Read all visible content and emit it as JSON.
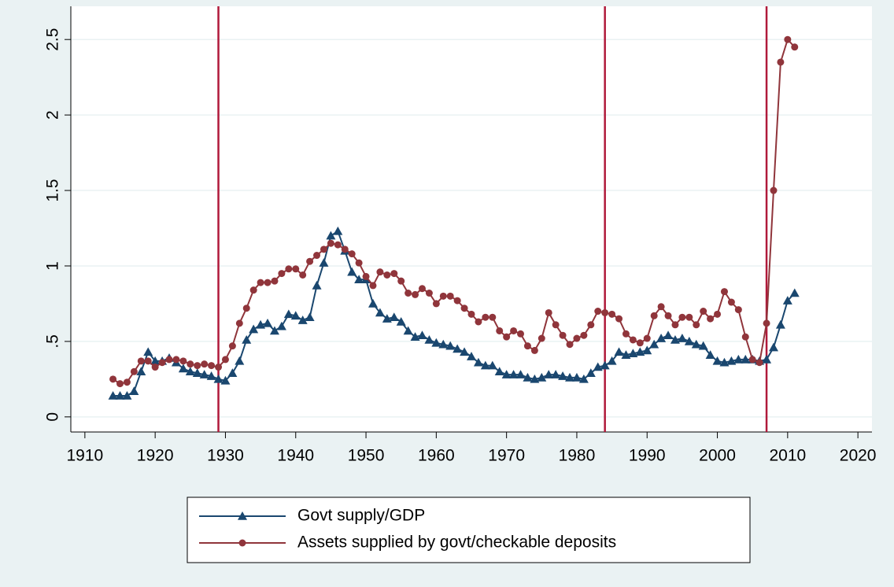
{
  "chart_data": {
    "type": "line",
    "x": [
      1914,
      1915,
      1916,
      1917,
      1918,
      1919,
      1920,
      1921,
      1922,
      1923,
      1924,
      1925,
      1926,
      1927,
      1928,
      1929,
      1930,
      1931,
      1932,
      1933,
      1934,
      1935,
      1936,
      1937,
      1938,
      1939,
      1940,
      1941,
      1942,
      1943,
      1944,
      1945,
      1946,
      1947,
      1948,
      1949,
      1950,
      1951,
      1952,
      1953,
      1954,
      1955,
      1956,
      1957,
      1958,
      1959,
      1960,
      1961,
      1962,
      1963,
      1964,
      1965,
      1966,
      1967,
      1968,
      1969,
      1970,
      1971,
      1972,
      1973,
      1974,
      1975,
      1976,
      1977,
      1978,
      1979,
      1980,
      1981,
      1982,
      1983,
      1984,
      1985,
      1986,
      1987,
      1988,
      1989,
      1990,
      1991,
      1992,
      1993,
      1994,
      1995,
      1996,
      1997,
      1998,
      1999,
      2000,
      2001,
      2002,
      2003,
      2004,
      2005,
      2006,
      2007,
      2008,
      2009,
      2010,
      2011
    ],
    "series": [
      {
        "name": "Govt supply/GDP",
        "color": "#1a476f",
        "marker": "triangle",
        "values": [
          0.14,
          0.14,
          0.14,
          0.17,
          0.3,
          0.43,
          0.37,
          0.37,
          0.39,
          0.36,
          0.32,
          0.3,
          0.29,
          0.28,
          0.27,
          0.25,
          0.24,
          0.29,
          0.37,
          0.51,
          0.58,
          0.61,
          0.62,
          0.57,
          0.6,
          0.68,
          0.67,
          0.64,
          0.66,
          0.87,
          1.02,
          1.2,
          1.23,
          1.1,
          0.96,
          0.91,
          0.91,
          0.75,
          0.69,
          0.65,
          0.66,
          0.63,
          0.57,
          0.53,
          0.54,
          0.51,
          0.49,
          0.48,
          0.47,
          0.45,
          0.43,
          0.4,
          0.36,
          0.34,
          0.34,
          0.3,
          0.28,
          0.28,
          0.28,
          0.26,
          0.25,
          0.26,
          0.28,
          0.28,
          0.27,
          0.26,
          0.26,
          0.25,
          0.29,
          0.33,
          0.34,
          0.37,
          0.43,
          0.41,
          0.42,
          0.43,
          0.44,
          0.48,
          0.52,
          0.54,
          0.51,
          0.52,
          0.5,
          0.48,
          0.47,
          0.41,
          0.37,
          0.36,
          0.37,
          0.38,
          0.38,
          0.38,
          0.37,
          0.38,
          0.46,
          0.61,
          0.77,
          0.82
        ]
      },
      {
        "name": "Assets supplied by govt/checkable deposits",
        "color": "#90353b",
        "marker": "circle",
        "values": [
          0.25,
          0.22,
          0.23,
          0.3,
          0.37,
          0.37,
          0.33,
          0.36,
          0.38,
          0.38,
          0.37,
          0.35,
          0.34,
          0.35,
          0.34,
          0.33,
          0.38,
          0.47,
          0.62,
          0.72,
          0.84,
          0.89,
          0.89,
          0.9,
          0.95,
          0.98,
          0.98,
          0.94,
          1.03,
          1.07,
          1.11,
          1.15,
          1.14,
          1.11,
          1.08,
          1.02,
          0.93,
          0.87,
          0.96,
          0.94,
          0.95,
          0.9,
          0.82,
          0.81,
          0.85,
          0.82,
          0.75,
          0.8,
          0.8,
          0.77,
          0.72,
          0.68,
          0.63,
          0.66,
          0.66,
          0.57,
          0.53,
          0.57,
          0.55,
          0.47,
          0.44,
          0.52,
          0.69,
          0.61,
          0.54,
          0.48,
          0.52,
          0.54,
          0.61,
          0.7,
          0.69,
          0.68,
          0.65,
          0.55,
          0.51,
          0.49,
          0.52,
          0.67,
          0.73,
          0.67,
          0.61,
          0.66,
          0.66,
          0.61,
          0.7,
          0.65,
          0.68,
          0.83,
          0.76,
          0.71,
          0.53,
          0.38,
          0.36,
          0.62,
          1.5,
          2.35,
          2.5,
          2.45
        ]
      }
    ],
    "xlim": [
      1908,
      2022
    ],
    "xticks": [
      1910,
      1920,
      1930,
      1940,
      1950,
      1960,
      1970,
      1980,
      1990,
      2000,
      2010,
      2020
    ],
    "ylim": [
      -0.1,
      2.72
    ],
    "yticks": [
      0,
      {
        "value": 0.5,
        "label": ".5"
      },
      1,
      1.5,
      2,
      2.5
    ],
    "grid": true,
    "xlines": [
      1929,
      1984,
      2007
    ],
    "xline_color": "#b0193a",
    "legend": "bottom"
  }
}
